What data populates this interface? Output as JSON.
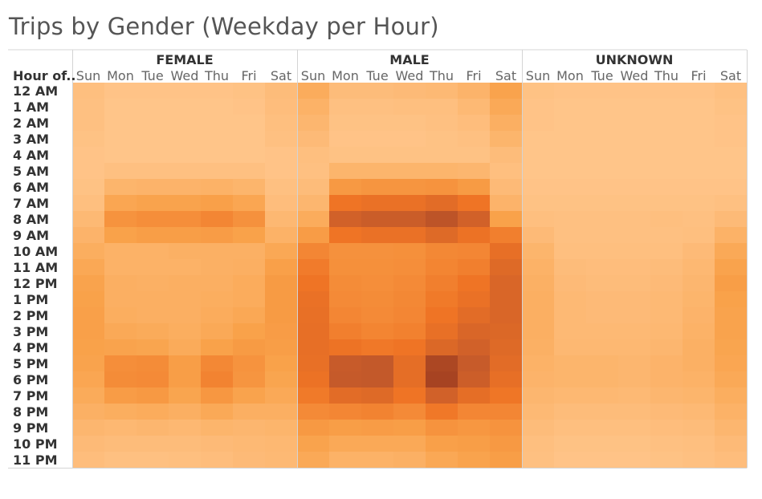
{
  "title": "Trips by Gender (Weekday per Hour)",
  "chart_data": {
    "type": "heatmap",
    "title": "Trips by Gender (Weekday per Hour)",
    "row_header": "Hour of..",
    "column_groups": [
      "FEMALE",
      "MALE",
      "UNKNOWN"
    ],
    "days": [
      "Sun",
      "Mon",
      "Tue",
      "Wed",
      "Thu",
      "Fri",
      "Sat"
    ],
    "hours": [
      "12 AM",
      "1 AM",
      "2 AM",
      "3 AM",
      "4 AM",
      "5 AM",
      "6 AM",
      "7 AM",
      "8 AM",
      "9 AM",
      "10 AM",
      "11 AM",
      "12 PM",
      "1 PM",
      "2 PM",
      "3 PM",
      "4 PM",
      "5 PM",
      "6 PM",
      "7 PM",
      "8 PM",
      "9 PM",
      "10 PM",
      "11 PM"
    ],
    "intensity_scale": [
      0,
      1
    ],
    "color_scale": [
      "#ffc68c",
      "#f9a24a",
      "#ef7425",
      "#c55a2a",
      "#9b3a1f"
    ],
    "values": {
      "FEMALE": [
        [
          0.05,
          0.02,
          0.02,
          0.02,
          0.02,
          0.03,
          0.07
        ],
        [
          0.04,
          0.01,
          0.01,
          0.01,
          0.01,
          0.02,
          0.06
        ],
        [
          0.04,
          0.01,
          0.01,
          0.01,
          0.01,
          0.01,
          0.05
        ],
        [
          0.03,
          0.01,
          0.01,
          0.01,
          0.01,
          0.01,
          0.04
        ],
        [
          0.02,
          0.01,
          0.01,
          0.01,
          0.01,
          0.01,
          0.02
        ],
        [
          0.02,
          0.04,
          0.04,
          0.04,
          0.04,
          0.04,
          0.02
        ],
        [
          0.03,
          0.12,
          0.13,
          0.13,
          0.14,
          0.12,
          0.04
        ],
        [
          0.05,
          0.22,
          0.24,
          0.24,
          0.26,
          0.22,
          0.06
        ],
        [
          0.09,
          0.33,
          0.36,
          0.36,
          0.4,
          0.34,
          0.1
        ],
        [
          0.13,
          0.25,
          0.27,
          0.27,
          0.28,
          0.25,
          0.14
        ],
        [
          0.17,
          0.14,
          0.14,
          0.15,
          0.15,
          0.15,
          0.21
        ],
        [
          0.21,
          0.14,
          0.14,
          0.14,
          0.15,
          0.16,
          0.26
        ],
        [
          0.24,
          0.16,
          0.15,
          0.16,
          0.16,
          0.18,
          0.29
        ],
        [
          0.25,
          0.16,
          0.16,
          0.16,
          0.17,
          0.18,
          0.29
        ],
        [
          0.26,
          0.17,
          0.16,
          0.16,
          0.18,
          0.21,
          0.29
        ],
        [
          0.26,
          0.2,
          0.19,
          0.17,
          0.2,
          0.25,
          0.28
        ],
        [
          0.25,
          0.24,
          0.23,
          0.19,
          0.25,
          0.29,
          0.27
        ],
        [
          0.24,
          0.36,
          0.37,
          0.27,
          0.39,
          0.33,
          0.25
        ],
        [
          0.22,
          0.37,
          0.38,
          0.27,
          0.42,
          0.32,
          0.23
        ],
        [
          0.19,
          0.28,
          0.3,
          0.23,
          0.31,
          0.24,
          0.2
        ],
        [
          0.15,
          0.17,
          0.18,
          0.16,
          0.2,
          0.16,
          0.16
        ],
        [
          0.11,
          0.1,
          0.11,
          0.1,
          0.12,
          0.11,
          0.12
        ],
        [
          0.08,
          0.07,
          0.07,
          0.07,
          0.08,
          0.09,
          0.1
        ],
        [
          0.06,
          0.04,
          0.04,
          0.05,
          0.06,
          0.08,
          0.09
        ]
      ],
      "MALE": [
        [
          0.18,
          0.07,
          0.07,
          0.08,
          0.09,
          0.13,
          0.24
        ],
        [
          0.14,
          0.04,
          0.04,
          0.05,
          0.05,
          0.09,
          0.2
        ],
        [
          0.11,
          0.03,
          0.03,
          0.03,
          0.04,
          0.06,
          0.16
        ],
        [
          0.08,
          0.02,
          0.02,
          0.02,
          0.03,
          0.04,
          0.12
        ],
        [
          0.05,
          0.03,
          0.03,
          0.03,
          0.03,
          0.03,
          0.07
        ],
        [
          0.04,
          0.12,
          0.12,
          0.12,
          0.12,
          0.11,
          0.05
        ],
        [
          0.07,
          0.3,
          0.32,
          0.32,
          0.33,
          0.29,
          0.08
        ],
        [
          0.11,
          0.5,
          0.53,
          0.53,
          0.58,
          0.5,
          0.13
        ],
        [
          0.18,
          0.68,
          0.72,
          0.72,
          0.8,
          0.68,
          0.25
        ],
        [
          0.28,
          0.5,
          0.53,
          0.53,
          0.6,
          0.52,
          0.44
        ],
        [
          0.4,
          0.34,
          0.34,
          0.35,
          0.39,
          0.4,
          0.55
        ],
        [
          0.46,
          0.35,
          0.35,
          0.36,
          0.41,
          0.44,
          0.6
        ],
        [
          0.5,
          0.37,
          0.36,
          0.38,
          0.44,
          0.5,
          0.63
        ],
        [
          0.53,
          0.38,
          0.37,
          0.39,
          0.47,
          0.53,
          0.63
        ],
        [
          0.54,
          0.4,
          0.38,
          0.4,
          0.5,
          0.58,
          0.63
        ],
        [
          0.55,
          0.44,
          0.41,
          0.43,
          0.54,
          0.63,
          0.62
        ],
        [
          0.55,
          0.51,
          0.48,
          0.5,
          0.62,
          0.68,
          0.6
        ],
        [
          0.54,
          0.74,
          0.76,
          0.56,
          0.9,
          0.74,
          0.58
        ],
        [
          0.52,
          0.75,
          0.76,
          0.56,
          0.93,
          0.71,
          0.55
        ],
        [
          0.47,
          0.58,
          0.6,
          0.5,
          0.68,
          0.56,
          0.49
        ],
        [
          0.38,
          0.4,
          0.42,
          0.38,
          0.48,
          0.4,
          0.4
        ],
        [
          0.3,
          0.27,
          0.28,
          0.27,
          0.33,
          0.31,
          0.33
        ],
        [
          0.24,
          0.2,
          0.2,
          0.2,
          0.26,
          0.27,
          0.3
        ],
        [
          0.2,
          0.14,
          0.14,
          0.15,
          0.21,
          0.24,
          0.27
        ]
      ],
      "UNKNOWN": [
        [
          0.03,
          0.02,
          0.02,
          0.02,
          0.02,
          0.02,
          0.04
        ],
        [
          0.02,
          0.01,
          0.01,
          0.01,
          0.01,
          0.01,
          0.03
        ],
        [
          0.02,
          0.01,
          0.01,
          0.01,
          0.01,
          0.01,
          0.02
        ],
        [
          0.01,
          0.01,
          0.01,
          0.01,
          0.01,
          0.01,
          0.02
        ],
        [
          0.01,
          0.01,
          0.01,
          0.01,
          0.01,
          0.01,
          0.01
        ],
        [
          0.01,
          0.01,
          0.01,
          0.01,
          0.01,
          0.01,
          0.01
        ],
        [
          0.02,
          0.02,
          0.02,
          0.02,
          0.02,
          0.02,
          0.02
        ],
        [
          0.03,
          0.03,
          0.03,
          0.03,
          0.03,
          0.03,
          0.04
        ],
        [
          0.05,
          0.04,
          0.04,
          0.04,
          0.05,
          0.04,
          0.08
        ],
        [
          0.08,
          0.04,
          0.04,
          0.04,
          0.04,
          0.05,
          0.14
        ],
        [
          0.12,
          0.05,
          0.05,
          0.05,
          0.05,
          0.08,
          0.2
        ],
        [
          0.14,
          0.07,
          0.06,
          0.06,
          0.07,
          0.1,
          0.24
        ],
        [
          0.15,
          0.08,
          0.07,
          0.07,
          0.08,
          0.11,
          0.27
        ],
        [
          0.16,
          0.09,
          0.08,
          0.08,
          0.09,
          0.12,
          0.25
        ],
        [
          0.16,
          0.09,
          0.08,
          0.08,
          0.09,
          0.13,
          0.24
        ],
        [
          0.16,
          0.09,
          0.09,
          0.09,
          0.1,
          0.14,
          0.24
        ],
        [
          0.15,
          0.1,
          0.1,
          0.1,
          0.11,
          0.15,
          0.23
        ],
        [
          0.14,
          0.12,
          0.12,
          0.11,
          0.13,
          0.15,
          0.22
        ],
        [
          0.13,
          0.12,
          0.12,
          0.11,
          0.13,
          0.14,
          0.2
        ],
        [
          0.11,
          0.1,
          0.1,
          0.09,
          0.11,
          0.12,
          0.17
        ],
        [
          0.09,
          0.07,
          0.07,
          0.07,
          0.08,
          0.09,
          0.14
        ],
        [
          0.07,
          0.05,
          0.05,
          0.05,
          0.06,
          0.07,
          0.11
        ],
        [
          0.05,
          0.03,
          0.03,
          0.03,
          0.04,
          0.05,
          0.08
        ],
        [
          0.04,
          0.02,
          0.02,
          0.02,
          0.03,
          0.04,
          0.06
        ]
      ]
    }
  }
}
